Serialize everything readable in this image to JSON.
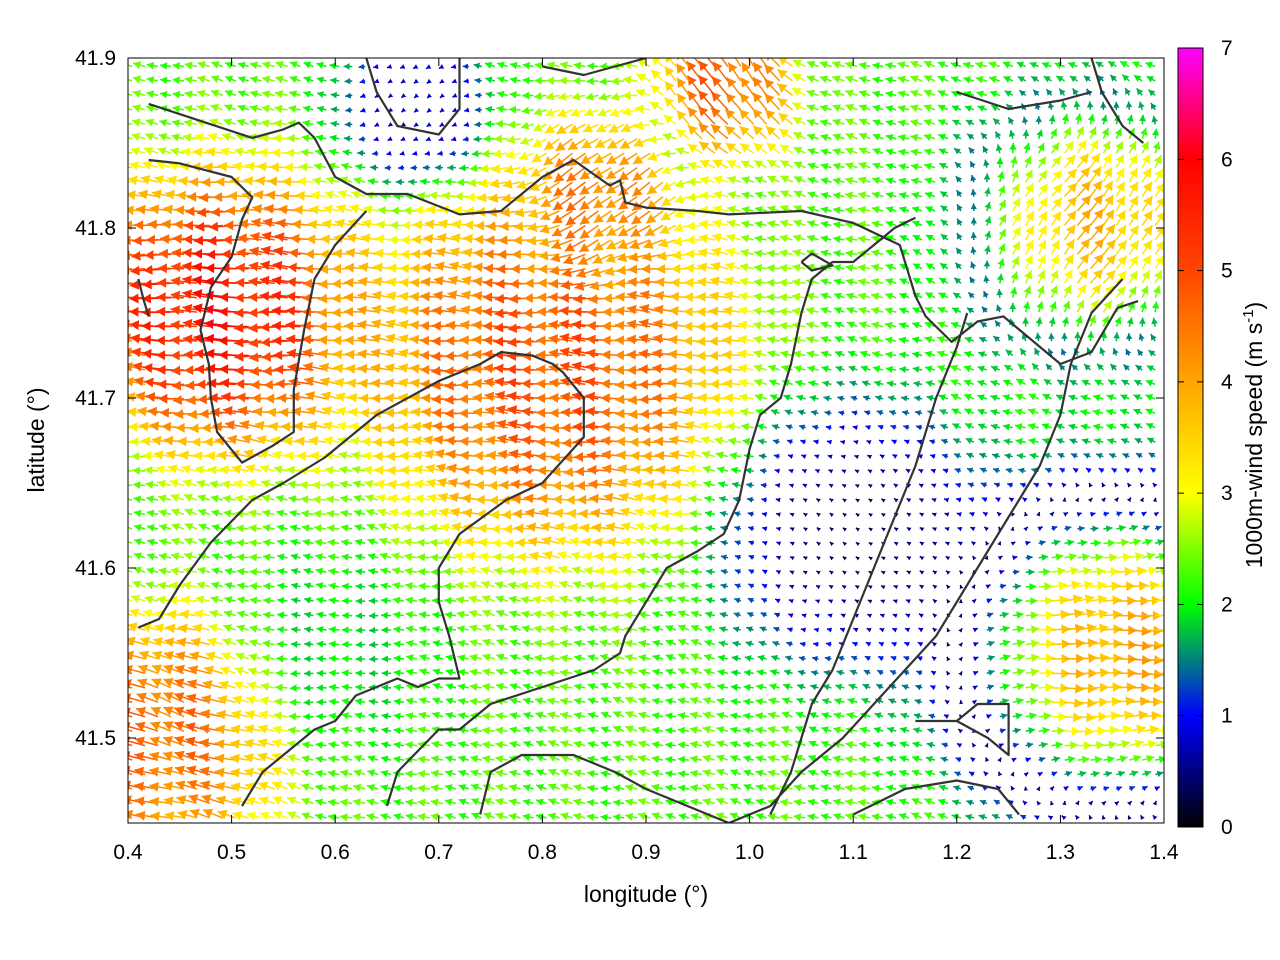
{
  "chart_data": {
    "type": "vector-field",
    "xlabel": "longitude (°)",
    "ylabel": "latitude (°)",
    "xlim": [
      0.4,
      1.4
    ],
    "ylim": [
      41.45,
      41.9
    ],
    "x_ticks": [
      "0.4",
      "0.5",
      "0.6",
      "0.7",
      "0.8",
      "0.9",
      "1.0",
      "1.1",
      "1.2",
      "1.3",
      "1.4"
    ],
    "y_ticks": [
      "41.5",
      "41.6",
      "41.7",
      "41.8",
      "41.9"
    ],
    "colorbar": {
      "label_prefix": "1000m-wind speed (m s",
      "label_sup": "-1",
      "label_suffix": ")",
      "range": [
        0,
        7
      ],
      "ticks": [
        "0",
        "1",
        "2",
        "3",
        "4",
        "5",
        "6",
        "7"
      ],
      "colors": [
        "#000000",
        "#0000ff",
        "#00ff00",
        "#ffff00",
        "#ffa500",
        "#ff4500",
        "#ff0000",
        "#ff00ff"
      ]
    },
    "grid": false,
    "contour_color": "#333333",
    "contours": [
      [
        [
          0.42,
          41.873
        ],
        [
          0.52,
          41.853
        ],
        [
          0.55,
          41.858
        ],
        [
          0.565,
          41.862
        ],
        [
          0.58,
          41.853
        ],
        [
          0.6,
          41.83
        ],
        [
          0.63,
          41.82
        ],
        [
          0.67,
          41.82
        ],
        [
          0.72,
          41.808
        ],
        [
          0.76,
          41.81
        ],
        [
          0.8,
          41.83
        ],
        [
          0.83,
          41.84
        ],
        [
          0.865,
          41.825
        ],
        [
          0.875,
          41.828
        ],
        [
          0.88,
          41.815
        ],
        [
          0.9,
          41.812
        ],
        [
          0.95,
          41.81
        ],
        [
          0.98,
          41.808
        ],
        [
          1.05,
          41.81
        ],
        [
          1.1,
          41.803
        ],
        [
          1.145,
          41.79
        ],
        [
          1.16,
          41.76
        ],
        [
          1.17,
          41.748
        ],
        [
          1.195,
          41.733
        ],
        [
          1.22,
          41.745
        ],
        [
          1.245,
          41.748
        ],
        [
          1.3,
          41.72
        ],
        [
          1.33,
          41.727
        ],
        [
          1.355,
          41.753
        ],
        [
          1.375,
          41.757
        ]
      ],
      [
        [
          0.42,
          41.84
        ],
        [
          0.45,
          41.838
        ],
        [
          0.5,
          41.83
        ],
        [
          0.52,
          41.818
        ],
        [
          0.51,
          41.805
        ],
        [
          0.5,
          41.783
        ],
        [
          0.48,
          41.765
        ],
        [
          0.47,
          41.74
        ],
        [
          0.478,
          41.72
        ],
        [
          0.48,
          41.7
        ],
        [
          0.486,
          41.68
        ],
        [
          0.51,
          41.662
        ],
        [
          0.54,
          41.672
        ],
        [
          0.56,
          41.68
        ],
        [
          0.56,
          41.705
        ],
        [
          0.57,
          41.74
        ],
        [
          0.58,
          41.77
        ],
        [
          0.6,
          41.79
        ],
        [
          0.63,
          41.81
        ]
      ],
      [
        [
          0.41,
          41.77
        ],
        [
          0.415,
          41.758
        ],
        [
          0.42,
          41.748
        ]
      ],
      [
        [
          0.41,
          41.565
        ],
        [
          0.43,
          41.57
        ],
        [
          0.45,
          41.59
        ],
        [
          0.48,
          41.615
        ],
        [
          0.52,
          41.64
        ],
        [
          0.55,
          41.65
        ],
        [
          0.59,
          41.665
        ],
        [
          0.64,
          41.69
        ],
        [
          0.7,
          41.71
        ],
        [
          0.74,
          41.72
        ],
        [
          0.76,
          41.727
        ],
        [
          0.79,
          41.725
        ],
        [
          0.81,
          41.72
        ],
        [
          0.82,
          41.715
        ],
        [
          0.84,
          41.7
        ],
        [
          0.84,
          41.677
        ],
        [
          0.8,
          41.65
        ],
        [
          0.765,
          41.64
        ],
        [
          0.72,
          41.62
        ],
        [
          0.7,
          41.6
        ],
        [
          0.7,
          41.58
        ],
        [
          0.71,
          41.56
        ],
        [
          0.72,
          41.535
        ],
        [
          0.7,
          41.535
        ],
        [
          0.68,
          41.53
        ],
        [
          0.66,
          41.535
        ],
        [
          0.62,
          41.525
        ],
        [
          0.6,
          41.51
        ],
        [
          0.58,
          41.505
        ],
        [
          0.55,
          41.49
        ],
        [
          0.53,
          41.48
        ],
        [
          0.51,
          41.46
        ]
      ],
      [
        [
          0.65,
          41.46
        ],
        [
          0.66,
          41.48
        ],
        [
          0.7,
          41.505
        ],
        [
          0.72,
          41.505
        ],
        [
          0.75,
          41.52
        ],
        [
          0.8,
          41.53
        ],
        [
          0.85,
          41.54
        ],
        [
          0.875,
          41.55
        ],
        [
          0.88,
          41.56
        ],
        [
          0.9,
          41.58
        ],
        [
          0.92,
          41.6
        ],
        [
          0.95,
          41.61
        ],
        [
          0.975,
          41.62
        ],
        [
          0.99,
          41.64
        ],
        [
          1.0,
          41.67
        ],
        [
          1.01,
          41.69
        ],
        [
          1.03,
          41.7
        ],
        [
          1.04,
          41.72
        ],
        [
          1.05,
          41.75
        ],
        [
          1.06,
          41.77
        ],
        [
          1.08,
          41.78
        ],
        [
          1.1,
          41.78
        ],
        [
          1.12,
          41.79
        ],
        [
          1.14,
          41.8
        ],
        [
          1.16,
          41.806
        ]
      ],
      [
        [
          0.74,
          41.455
        ],
        [
          0.75,
          41.48
        ],
        [
          0.78,
          41.49
        ],
        [
          0.83,
          41.49
        ],
        [
          0.87,
          41.48
        ],
        [
          0.9,
          41.47
        ],
        [
          0.94,
          41.46
        ],
        [
          0.98,
          41.45
        ],
        [
          1.02,
          41.46
        ],
        [
          1.05,
          41.48
        ],
        [
          1.09,
          41.5
        ],
        [
          1.12,
          41.52
        ],
        [
          1.15,
          41.54
        ],
        [
          1.18,
          41.56
        ],
        [
          1.2,
          41.58
        ],
        [
          1.22,
          41.6
        ],
        [
          1.24,
          41.62
        ],
        [
          1.26,
          41.64
        ],
        [
          1.28,
          41.66
        ],
        [
          1.3,
          41.69
        ],
        [
          1.31,
          41.72
        ],
        [
          1.33,
          41.75
        ],
        [
          1.36,
          41.77
        ]
      ],
      [
        [
          1.02,
          41.455
        ],
        [
          1.04,
          41.48
        ],
        [
          1.06,
          41.52
        ],
        [
          1.08,
          41.54
        ],
        [
          1.1,
          41.57
        ],
        [
          1.12,
          41.6
        ],
        [
          1.14,
          41.63
        ],
        [
          1.16,
          41.66
        ],
        [
          1.18,
          41.7
        ],
        [
          1.2,
          41.73
        ],
        [
          1.21,
          41.75
        ]
      ],
      [
        [
          1.16,
          41.51
        ],
        [
          1.2,
          41.51
        ],
        [
          1.22,
          41.52
        ],
        [
          1.25,
          41.52
        ],
        [
          1.25,
          41.49
        ],
        [
          1.23,
          41.5
        ],
        [
          1.2,
          41.51
        ]
      ],
      [
        [
          1.1,
          41.455
        ],
        [
          1.15,
          41.47
        ],
        [
          1.2,
          41.475
        ],
        [
          1.24,
          41.47
        ],
        [
          1.26,
          41.455
        ]
      ],
      [
        [
          1.05,
          41.78
        ],
        [
          1.06,
          41.785
        ],
        [
          1.08,
          41.778
        ],
        [
          1.06,
          41.775
        ],
        [
          1.05,
          41.78
        ]
      ],
      [
        [
          0.63,
          41.9
        ],
        [
          0.64,
          41.88
        ],
        [
          0.66,
          41.86
        ],
        [
          0.7,
          41.855
        ],
        [
          0.72,
          41.87
        ],
        [
          0.72,
          41.9
        ]
      ],
      [
        [
          0.8,
          41.895
        ],
        [
          0.84,
          41.89
        ],
        [
          0.87,
          41.895
        ],
        [
          0.9,
          41.9
        ]
      ],
      [
        [
          1.33,
          41.9
        ],
        [
          1.34,
          41.88
        ],
        [
          1.36,
          41.86
        ],
        [
          1.38,
          41.85
        ]
      ],
      [
        [
          1.2,
          41.88
        ],
        [
          1.25,
          41.87
        ],
        [
          1.3,
          41.875
        ],
        [
          1.33,
          41.88
        ]
      ]
    ],
    "field_zones": [
      {
        "lon": 0.82,
        "lat": 41.72,
        "u": -5.5,
        "v": 0.2,
        "spread": 0.12
      },
      {
        "lon": 0.5,
        "lat": 41.75,
        "u": -6.5,
        "v": 0.1,
        "spread": 0.09
      },
      {
        "lon": 0.86,
        "lat": 41.82,
        "u": -3.5,
        "v": -4.0,
        "spread": 0.06
      },
      {
        "lon": 0.98,
        "lat": 41.88,
        "u": -3.0,
        "v": 4.5,
        "spread": 0.05
      },
      {
        "lon": 1.1,
        "lat": 41.62,
        "u": 0.2,
        "v": 0.1,
        "spread": 0.09
      },
      {
        "lon": 1.35,
        "lat": 41.55,
        "u": 5.5,
        "v": 0.1,
        "spread": 0.1
      },
      {
        "lon": 1.33,
        "lat": 41.8,
        "u": 3.5,
        "v": 3.5,
        "spread": 0.08
      },
      {
        "lon": 0.44,
        "lat": 41.5,
        "u": -5.0,
        "v": 1.5,
        "spread": 0.08
      },
      {
        "lon": 0.6,
        "lat": 41.55,
        "u": -1.8,
        "v": 0.0,
        "spread": 0.07
      },
      {
        "lon": 0.68,
        "lat": 41.87,
        "u": 0.0,
        "v": -0.8,
        "spread": 0.05
      }
    ]
  }
}
